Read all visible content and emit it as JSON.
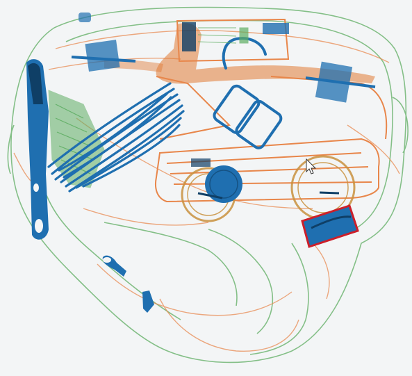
{
  "scan": {
    "palette": {
      "background": "#f3f5f6",
      "organic": "#e8864a",
      "organic_dense": "#e07a35",
      "inorganic": "#5fae63",
      "metal": "#1f6fb0",
      "metal_dark": "#0f3f66",
      "highlight": "#cc1f2a",
      "cursor_fill": "#ffffff",
      "cursor_stroke": "#333333"
    },
    "objects": [
      {
        "name": "bag-outline"
      },
      {
        "name": "toy-vehicle-frame"
      },
      {
        "name": "bundle-of-cables"
      },
      {
        "name": "zipper-pull"
      },
      {
        "name": "circuit-board"
      },
      {
        "name": "buckle-clips"
      },
      {
        "name": "blue-disc"
      },
      {
        "name": "flagged-item-highlight"
      }
    ],
    "cursor": {
      "name": "mouse-pointer-icon"
    }
  }
}
